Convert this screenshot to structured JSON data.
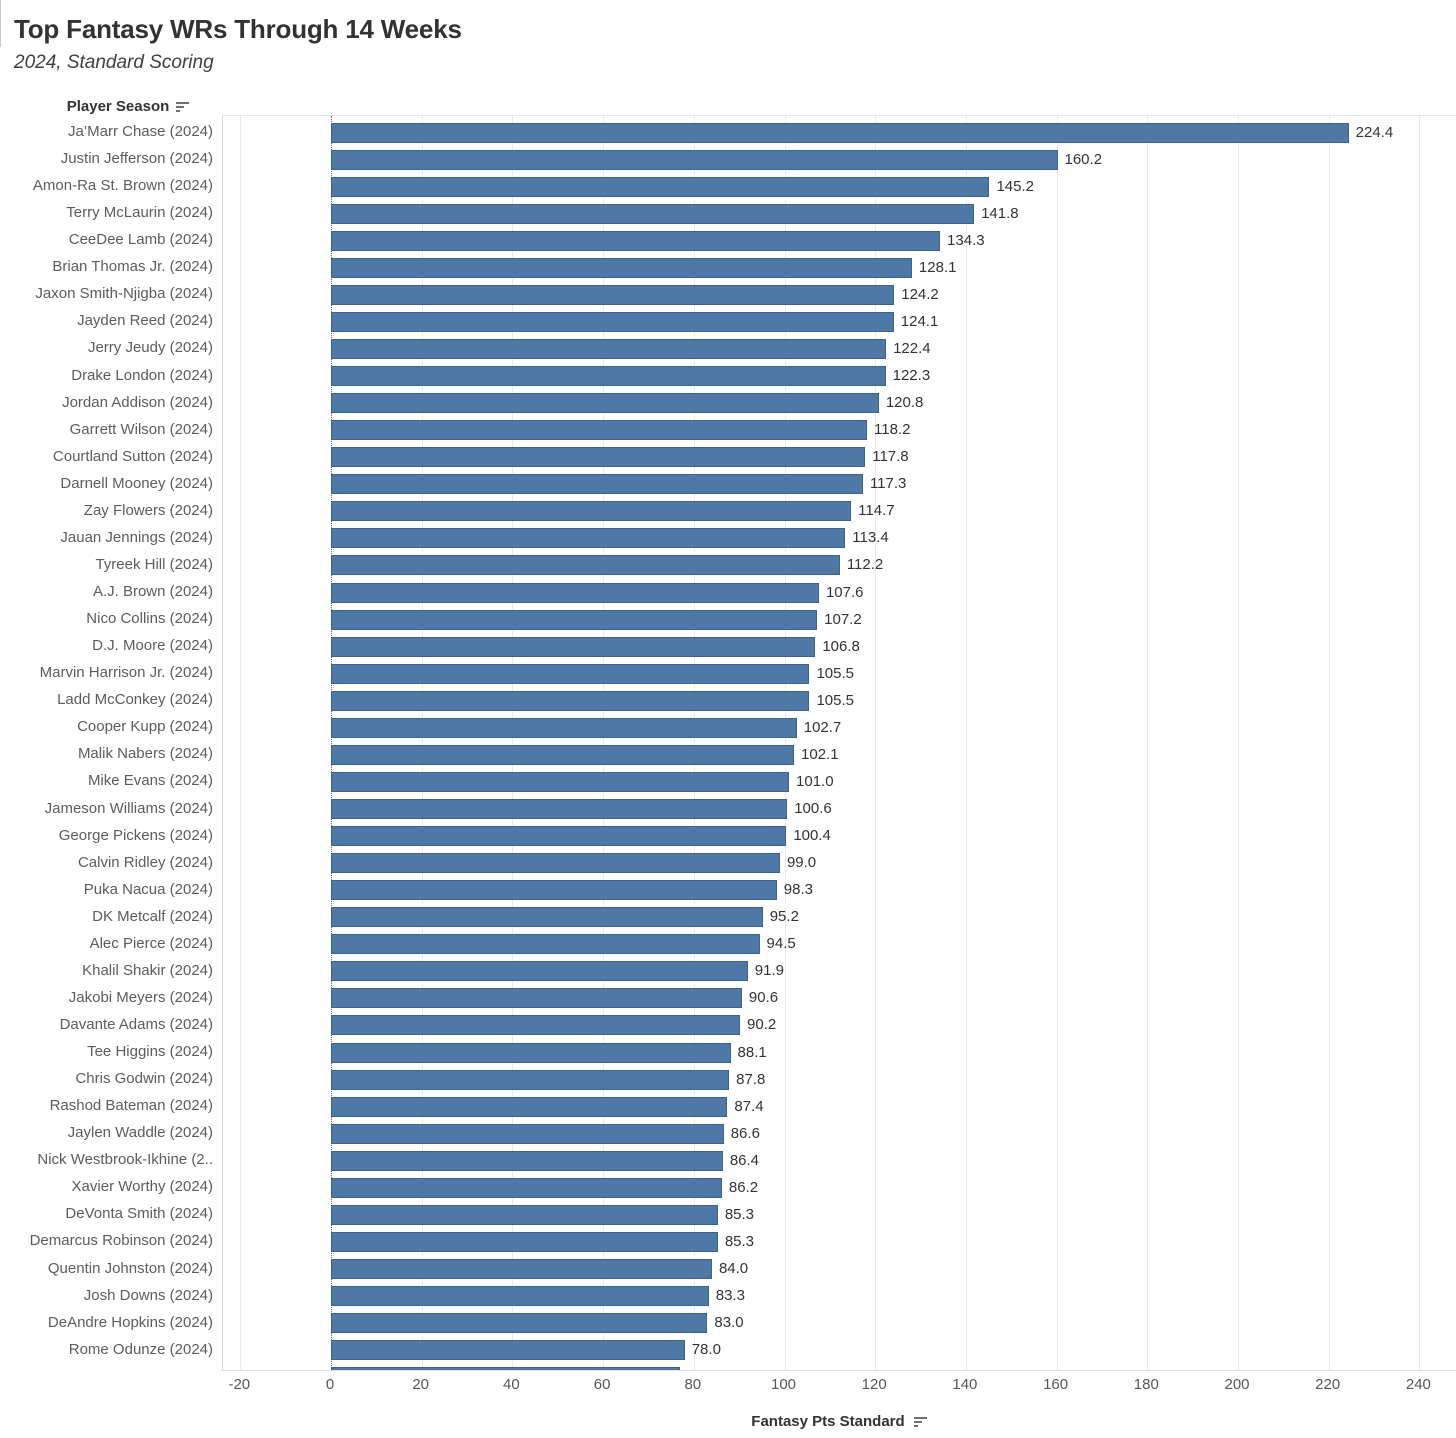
{
  "page": {
    "title": "Top Fantasy WRs Through 14 Weeks",
    "subtitle": "2024, Standard Scoring"
  },
  "row_axis": {
    "header": "Player Season",
    "sort_icon": "sort-descending-icon"
  },
  "value_axis": {
    "title": "Fantasy Pts Standard",
    "sort_icon": "sort-descending-icon",
    "ticks": [
      -20,
      0,
      20,
      40,
      60,
      80,
      100,
      120,
      140,
      160,
      180,
      200,
      220,
      240
    ]
  },
  "colors": {
    "bar_fill": "#4e79a7",
    "bar_border": "#39628c",
    "gridline": "#eaeaea",
    "zero_line": "#666666",
    "title": "#323232",
    "row_label": "#5c5c5c",
    "value_label": "#333333",
    "tick_label": "#565656"
  },
  "chart_data": {
    "type": "bar",
    "orientation": "horizontal",
    "title": "Top Fantasy WRs Through 14 Weeks",
    "subtitle": "2024, Standard Scoring",
    "xlabel": "Fantasy Pts Standard",
    "ylabel": "Player Season",
    "xlim": [
      -20,
      240
    ],
    "grid": "vertical, major every 20",
    "legend": "none",
    "value_label_format": "0.1f",
    "categories": [
      "Ja’Marr Chase (2024)",
      "Justin Jefferson (2024)",
      "Amon-Ra St. Brown (2024)",
      "Terry McLaurin (2024)",
      "CeeDee Lamb (2024)",
      "Brian Thomas Jr. (2024)",
      "Jaxon Smith-Njigba (2024)",
      "Jayden Reed (2024)",
      "Jerry Jeudy (2024)",
      "Drake London (2024)",
      "Jordan Addison (2024)",
      "Garrett Wilson (2024)",
      "Courtland Sutton (2024)",
      "Darnell Mooney (2024)",
      "Zay Flowers (2024)",
      "Jauan Jennings (2024)",
      "Tyreek Hill (2024)",
      "A.J. Brown (2024)",
      "Nico Collins (2024)",
      "D.J. Moore (2024)",
      "Marvin Harrison Jr. (2024)",
      "Ladd McConkey (2024)",
      "Cooper Kupp (2024)",
      "Malik Nabers (2024)",
      "Mike Evans (2024)",
      "Jameson Williams (2024)",
      "George Pickens (2024)",
      "Calvin Ridley (2024)",
      "Puka Nacua (2024)",
      "DK Metcalf (2024)",
      "Alec Pierce (2024)",
      "Khalil Shakir (2024)",
      "Jakobi Meyers (2024)",
      "Davante Adams (2024)",
      "Tee Higgins (2024)",
      "Chris Godwin (2024)",
      "Rashod Bateman (2024)",
      "Jaylen Waddle (2024)",
      "Nick Westbrook-Ikhine (2..",
      "Xavier Worthy (2024)",
      "DeVonta Smith (2024)",
      "Demarcus Robinson (2024)",
      "Quentin Johnston (2024)",
      "Josh Downs (2024)",
      "DeAndre Hopkins (2024)",
      "Rome Odunze (2024)"
    ],
    "values": [
      224.4,
      160.2,
      145.2,
      141.8,
      134.3,
      128.1,
      124.2,
      124.1,
      122.4,
      122.3,
      120.8,
      118.2,
      117.8,
      117.3,
      114.7,
      113.4,
      112.2,
      107.6,
      107.2,
      106.8,
      105.5,
      105.5,
      102.7,
      102.1,
      101.0,
      100.6,
      100.4,
      99.0,
      98.3,
      95.2,
      94.5,
      91.9,
      90.6,
      90.2,
      88.1,
      87.8,
      87.4,
      86.6,
      86.4,
      86.2,
      85.3,
      85.3,
      84.0,
      83.3,
      83.0,
      78.0
    ],
    "partial_bottom_row": {
      "label_visible": false,
      "approx_value": 77
    }
  }
}
